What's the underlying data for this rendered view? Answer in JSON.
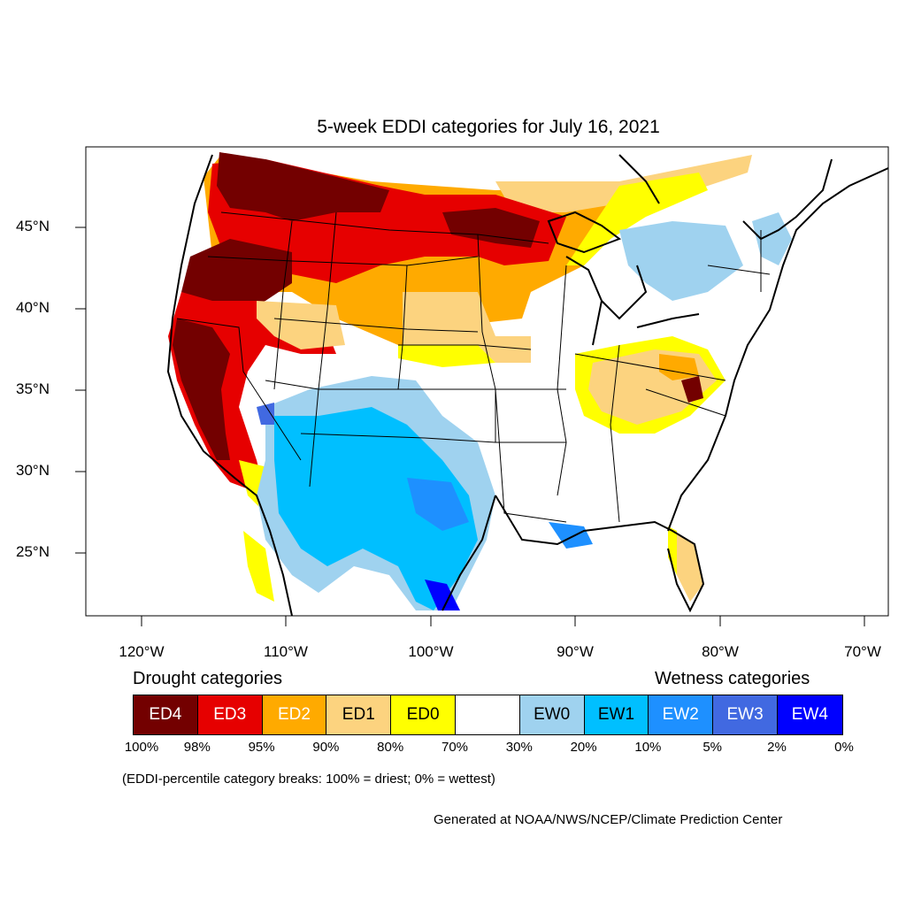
{
  "title": "5-week EDDI categories for July 16, 2021",
  "lat_labels": [
    "45°N",
    "40°N",
    "35°N",
    "30°N",
    "25°N"
  ],
  "lon_labels": [
    "120°W",
    "110°W",
    "100°W",
    "90°W",
    "80°W",
    "70°W"
  ],
  "legend": {
    "drought_heading": "Drought categories",
    "wetness_heading": "Wetness categories",
    "categories": [
      {
        "label": "ED4",
        "color": "#730000",
        "text_color": "#ffffff"
      },
      {
        "label": "ED3",
        "color": "#e60000",
        "text_color": "#ffffff"
      },
      {
        "label": "ED2",
        "color": "#ffaa00",
        "text_color": "#ffffff"
      },
      {
        "label": "ED1",
        "color": "#fcd37f",
        "text_color": "#000000"
      },
      {
        "label": "ED0",
        "color": "#ffff00",
        "text_color": "#000000"
      },
      {
        "label": "",
        "color": "#ffffff",
        "text_color": "#000000"
      },
      {
        "label": "EW0",
        "color": "#9fd2ef",
        "text_color": "#000000"
      },
      {
        "label": "EW1",
        "color": "#00bfff",
        "text_color": "#000000"
      },
      {
        "label": "EW2",
        "color": "#1e90ff",
        "text_color": "#ffffff"
      },
      {
        "label": "EW3",
        "color": "#4169e1",
        "text_color": "#ffffff"
      },
      {
        "label": "EW4",
        "color": "#0000ff",
        "text_color": "#ffffff"
      }
    ],
    "percent_breaks": [
      "100%",
      "98%",
      "95%",
      "90%",
      "80%",
      "70%",
      "30%",
      "20%",
      "10%",
      "5%",
      "2%",
      "0%"
    ]
  },
  "note": "(EDDI-percentile category breaks: 100% = driest; 0% = wettest)",
  "credit": "Generated at NOAA/NWS/NCEP/Climate Prediction Center"
}
